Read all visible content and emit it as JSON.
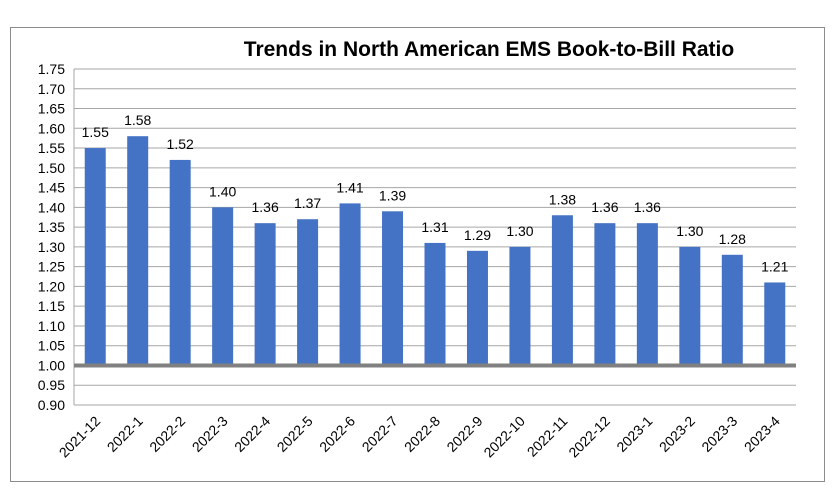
{
  "chart_data": {
    "type": "bar",
    "title": "Trends in North American EMS Book-to-Bill Ratio",
    "xlabel": "",
    "ylabel": "",
    "categories": [
      "2021-12",
      "2022-1",
      "2022-2",
      "2022-3",
      "2022-4",
      "2022-5",
      "2022-6",
      "2022-7",
      "2022-8",
      "2022-9",
      "2022-10",
      "2022-11",
      "2022-12",
      "2023-1",
      "2023-2",
      "2023-3",
      "2023-4"
    ],
    "values": [
      1.55,
      1.58,
      1.52,
      1.4,
      1.36,
      1.37,
      1.41,
      1.39,
      1.31,
      1.29,
      1.3,
      1.38,
      1.36,
      1.36,
      1.3,
      1.28,
      1.21
    ],
    "value_labels": [
      "1.55",
      "1.58",
      "1.52",
      "1.40",
      "1.36",
      "1.37",
      "1.41",
      "1.39",
      "1.31",
      "1.29",
      "1.30",
      "1.38",
      "1.36",
      "1.36",
      "1.30",
      "1.28",
      "1.21"
    ],
    "ylim": [
      0.9,
      1.75
    ],
    "yticks": [
      "1.75",
      "1.70",
      "1.65",
      "1.60",
      "1.55",
      "1.50",
      "1.45",
      "1.40",
      "1.35",
      "1.30",
      "1.25",
      "1.20",
      "1.15",
      "1.10",
      "1.05",
      "1.00",
      "0.95",
      "0.90"
    ],
    "baseline": 1.0,
    "grid": true,
    "legend": "none",
    "colors": {
      "bar": "#4472C4",
      "baseline": "#808080",
      "grid": "#a6a6a6"
    }
  }
}
